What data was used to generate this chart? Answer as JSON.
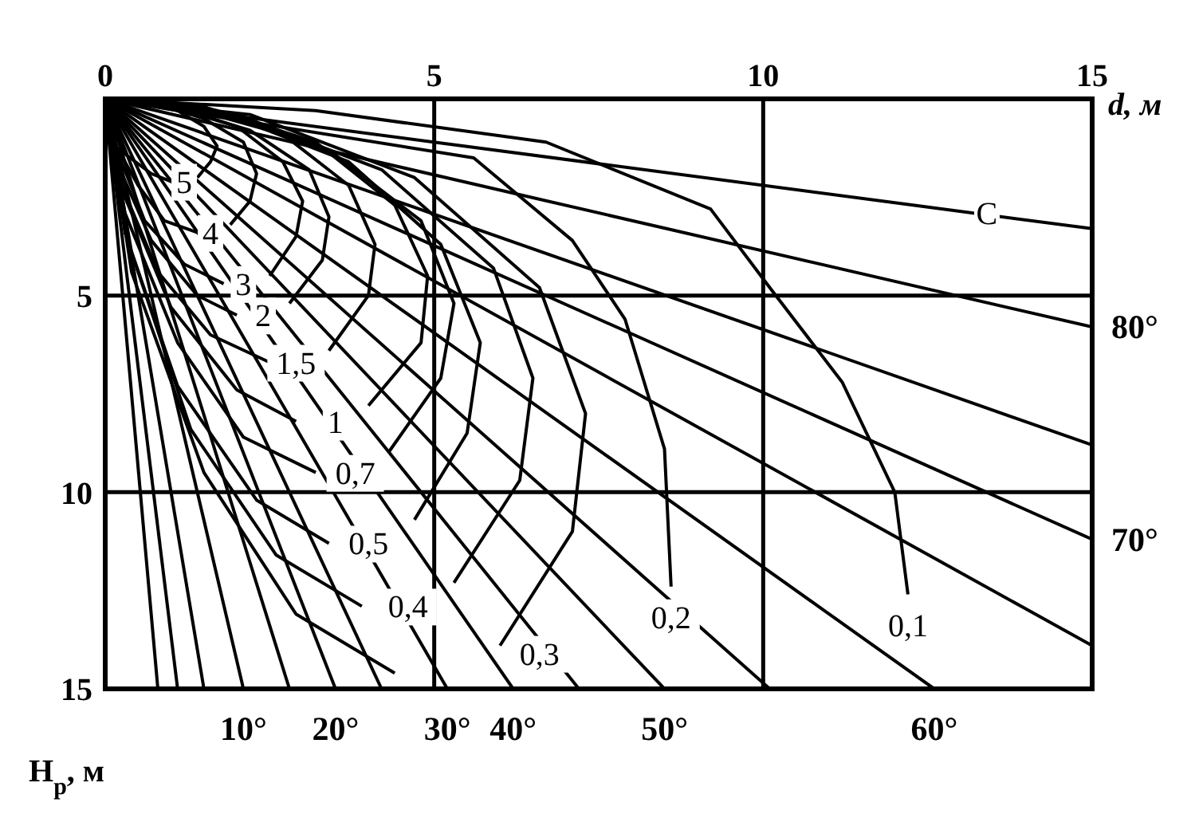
{
  "chart_data": {
    "type": "line",
    "xlabel": "d, м",
    "ylabel": "H$_{р}$, м",
    "xlim": [
      0,
      15
    ],
    "xticks": [
      0,
      5,
      10,
      15
    ],
    "ylim": [
      15,
      0
    ],
    "yticks": [
      {
        "value": 0,
        "label": null
      },
      5,
      10,
      15
    ],
    "grid": true,
    "series": [
      {
        "color": "#000000",
        "x": [
          0,
          0.1,
          0.3,
          0.7,
          1.0,
          1.2,
          1.4,
          1.6,
          1.7,
          1.5,
          1.1,
          0.5,
          0
        ],
        "values": [
          0,
          0.6,
          1.4,
          1.9,
          2.1,
          null,
          2.0,
          1.6,
          1.2,
          0.7,
          0.3,
          0.1,
          0
        ]
      },
      {
        "color": "#000000",
        "x": [
          0,
          0.1,
          0.5,
          0.9,
          1.4,
          1.6,
          1.9,
          2.2,
          2.3,
          2.1,
          1.5,
          0.7,
          0
        ],
        "values": [
          0,
          1.0,
          2.2,
          3.1,
          3.4,
          null,
          3.2,
          2.6,
          1.9,
          1.1,
          0.5,
          0.1,
          0
        ]
      },
      {
        "color": "#000000",
        "x": [
          0,
          0.2,
          0.6,
          1.2,
          1.8,
          2.1,
          2.5,
          2.9,
          3.0,
          2.7,
          2.0,
          0.9,
          0
        ],
        "values": [
          0,
          1.4,
          3.1,
          4.2,
          4.7,
          null,
          4.5,
          3.5,
          2.6,
          1.6,
          0.7,
          0.1,
          0
        ]
      },
      {
        "color": "#000000",
        "x": [
          0,
          0.2,
          0.7,
          1.4,
          2.0,
          2.4,
          2.8,
          3.3,
          3.4,
          3.1,
          2.2,
          1.0,
          0
        ],
        "values": [
          0,
          1.7,
          3.6,
          5.0,
          5.5,
          null,
          5.2,
          4.1,
          3.0,
          1.8,
          0.8,
          0.2,
          0
        ]
      },
      {
        "color": "#000000",
        "x": [
          0,
          0.2,
          0.8,
          1.6,
          2.5,
          2.9,
          3.4,
          4.0,
          4.1,
          3.7,
          2.7,
          1.2,
          0
        ],
        "values": [
          0,
          2.0,
          4.4,
          6.0,
          6.7,
          null,
          6.4,
          5.0,
          3.7,
          2.2,
          0.9,
          0.2,
          0
        ]
      },
      {
        "color": "#000000",
        "x": [
          0,
          0.3,
          1.0,
          2.0,
          2.9,
          3.5,
          4.0,
          4.8,
          4.9,
          4.4,
          3.2,
          1.5,
          0
        ],
        "values": [
          0,
          2.5,
          5.3,
          7.4,
          8.2,
          null,
          7.8,
          6.2,
          4.5,
          2.7,
          1.1,
          0.2,
          0
        ]
      },
      {
        "color": "#000000",
        "x": [
          0,
          0.3,
          1.1,
          2.1,
          3.2,
          3.8,
          4.3,
          5.1,
          5.3,
          4.8,
          3.4,
          1.6,
          0
        ],
        "values": [
          0,
          2.9,
          6.2,
          8.6,
          9.5,
          null,
          9.0,
          7.1,
          5.2,
          3.1,
          1.3,
          0.3,
          0
        ]
      },
      {
        "color": "#000000",
        "x": [
          0,
          0.3,
          1.1,
          2.3,
          3.4,
          4.0,
          4.7,
          5.5,
          5.7,
          5.1,
          3.7,
          1.7,
          0
        ],
        "values": [
          0,
          3.4,
          7.3,
          10.2,
          11.3,
          null,
          10.7,
          8.5,
          6.2,
          3.7,
          1.6,
          0.3,
          0
        ]
      },
      {
        "color": "#000000",
        "x": [
          0,
          0.4,
          1.3,
          2.6,
          3.9,
          4.6,
          5.3,
          6.3,
          6.5,
          5.9,
          4.2,
          2.0,
          0
        ],
        "values": [
          0,
          3.9,
          8.4,
          11.6,
          12.9,
          null,
          12.3,
          9.7,
          7.1,
          4.3,
          1.8,
          0.4,
          0
        ]
      },
      {
        "color": "#000000",
        "x": [
          0,
          0.4,
          1.5,
          2.9,
          4.4,
          5.2,
          6.0,
          7.1,
          7.3,
          6.6,
          4.7,
          2.2,
          0
        ],
        "values": [
          0,
          4.4,
          9.5,
          13.1,
          14.6,
          null,
          13.9,
          11.0,
          8.0,
          4.8,
          2.0,
          0.4,
          0
        ]
      },
      {
        "color": "#000000",
        "x": [
          0,
          5.6,
          7.1,
          7.9,
          8.5,
          8.6
        ],
        "values": [
          0,
          1.5,
          3.6,
          5.6,
          8.9,
          12.4
        ]
      },
      {
        "color": "#000000",
        "x": [
          0,
          3.2,
          6.7,
          9.2,
          10.1,
          11.2,
          12.0,
          12.2
        ],
        "values": [
          0,
          0.3,
          1.1,
          2.8,
          4.8,
          7.2,
          10,
          12.6
        ]
      },
      {
        "color": "#000000",
        "x": [
          0,
          0.8
        ],
        "values": [
          0,
          15
        ]
      },
      {
        "color": "#000000",
        "x": [
          0,
          1.1
        ],
        "values": [
          0,
          15
        ]
      },
      {
        "color": "#000000",
        "x": [
          0,
          1.5
        ],
        "values": [
          0,
          15
        ]
      },
      {
        "color": "#000000",
        "x": [
          0,
          2.1
        ],
        "values": [
          0,
          15
        ]
      },
      {
        "color": "#000000",
        "x": [
          0,
          2.8
        ],
        "values": [
          0,
          15
        ]
      },
      {
        "color": "#000000",
        "x": [
          0,
          3.5
        ],
        "values": [
          0,
          15
        ]
      },
      {
        "color": "#000000",
        "x": [
          0,
          4.2
        ],
        "values": [
          0,
          15
        ]
      },
      {
        "color": "#000000",
        "x": [
          0,
          5.2
        ],
        "values": [
          0,
          15
        ]
      },
      {
        "color": "#000000",
        "x": [
          0,
          6.2
        ],
        "values": [
          0,
          15
        ]
      },
      {
        "color": "#000000",
        "x": [
          0,
          7.2
        ],
        "values": [
          0,
          15
        ]
      },
      {
        "color": "#000000",
        "x": [
          0,
          8.5
        ],
        "values": [
          0,
          15
        ]
      },
      {
        "color": "#000000",
        "x": [
          0,
          10.1
        ],
        "values": [
          0,
          15
        ]
      },
      {
        "color": "#000000",
        "x": [
          0,
          12.6
        ],
        "values": [
          0,
          15
        ]
      },
      {
        "color": "#000000",
        "x": [
          0,
          15
        ],
        "values": [
          0,
          13.9
        ]
      },
      {
        "color": "#000000",
        "x": [
          0,
          15
        ],
        "values": [
          0,
          11.2
        ]
      },
      {
        "color": "#000000",
        "x": [
          0,
          15
        ],
        "values": [
          0,
          8.8
        ]
      },
      {
        "color": "#000000",
        "x": [
          0,
          15
        ],
        "values": [
          0,
          5.8
        ]
      },
      {
        "color": "#000000",
        "x": [
          0,
          15
        ],
        "values": [
          0,
          3.3
        ]
      }
    ],
    "annotations": [
      {
        "text": "5",
        "x": 1.2,
        "y": 2.1
      },
      {
        "text": "4",
        "x": 1.6,
        "y": 3.4
      },
      {
        "text": "3",
        "x": 2.1,
        "y": 4.7
      },
      {
        "text": "2",
        "x": 2.4,
        "y": 5.5
      },
      {
        "text": "1,5",
        "x": 2.9,
        "y": 6.7
      },
      {
        "text": "1",
        "x": 3.5,
        "y": 8.2
      },
      {
        "text": "0,7",
        "x": 3.8,
        "y": 9.5
      },
      {
        "text": "0,5",
        "x": 4.0,
        "y": 11.3
      },
      {
        "text": "0,4",
        "x": 4.6,
        "y": 12.9
      },
      {
        "text": "0,3",
        "x": 6.6,
        "y": 14.1
      },
      {
        "text": "0,2",
        "x": 8.6,
        "y": 12.4
      },
      {
        "text": "0,1",
        "x": 12.2,
        "y": 12.6
      },
      {
        "text": "C",
        "x": 13.4,
        "y": 2.9
      },
      {
        "text": "10°",
        "x": 2.1,
        "y": 15
      },
      {
        "text": "20°",
        "x": 3.5,
        "y": 15
      },
      {
        "text": "30°",
        "x": 5.2,
        "y": 15
      },
      {
        "text": "40°",
        "x": 6.2,
        "y": 15
      },
      {
        "text": "50°",
        "x": 8.5,
        "y": 15
      },
      {
        "text": "60°",
        "x": 12.6,
        "y": 15
      },
      {
        "text": "80°",
        "x": 15,
        "y": 5.8
      },
      {
        "text": "70°",
        "x": 15,
        "y": 11.2
      }
    ]
  }
}
